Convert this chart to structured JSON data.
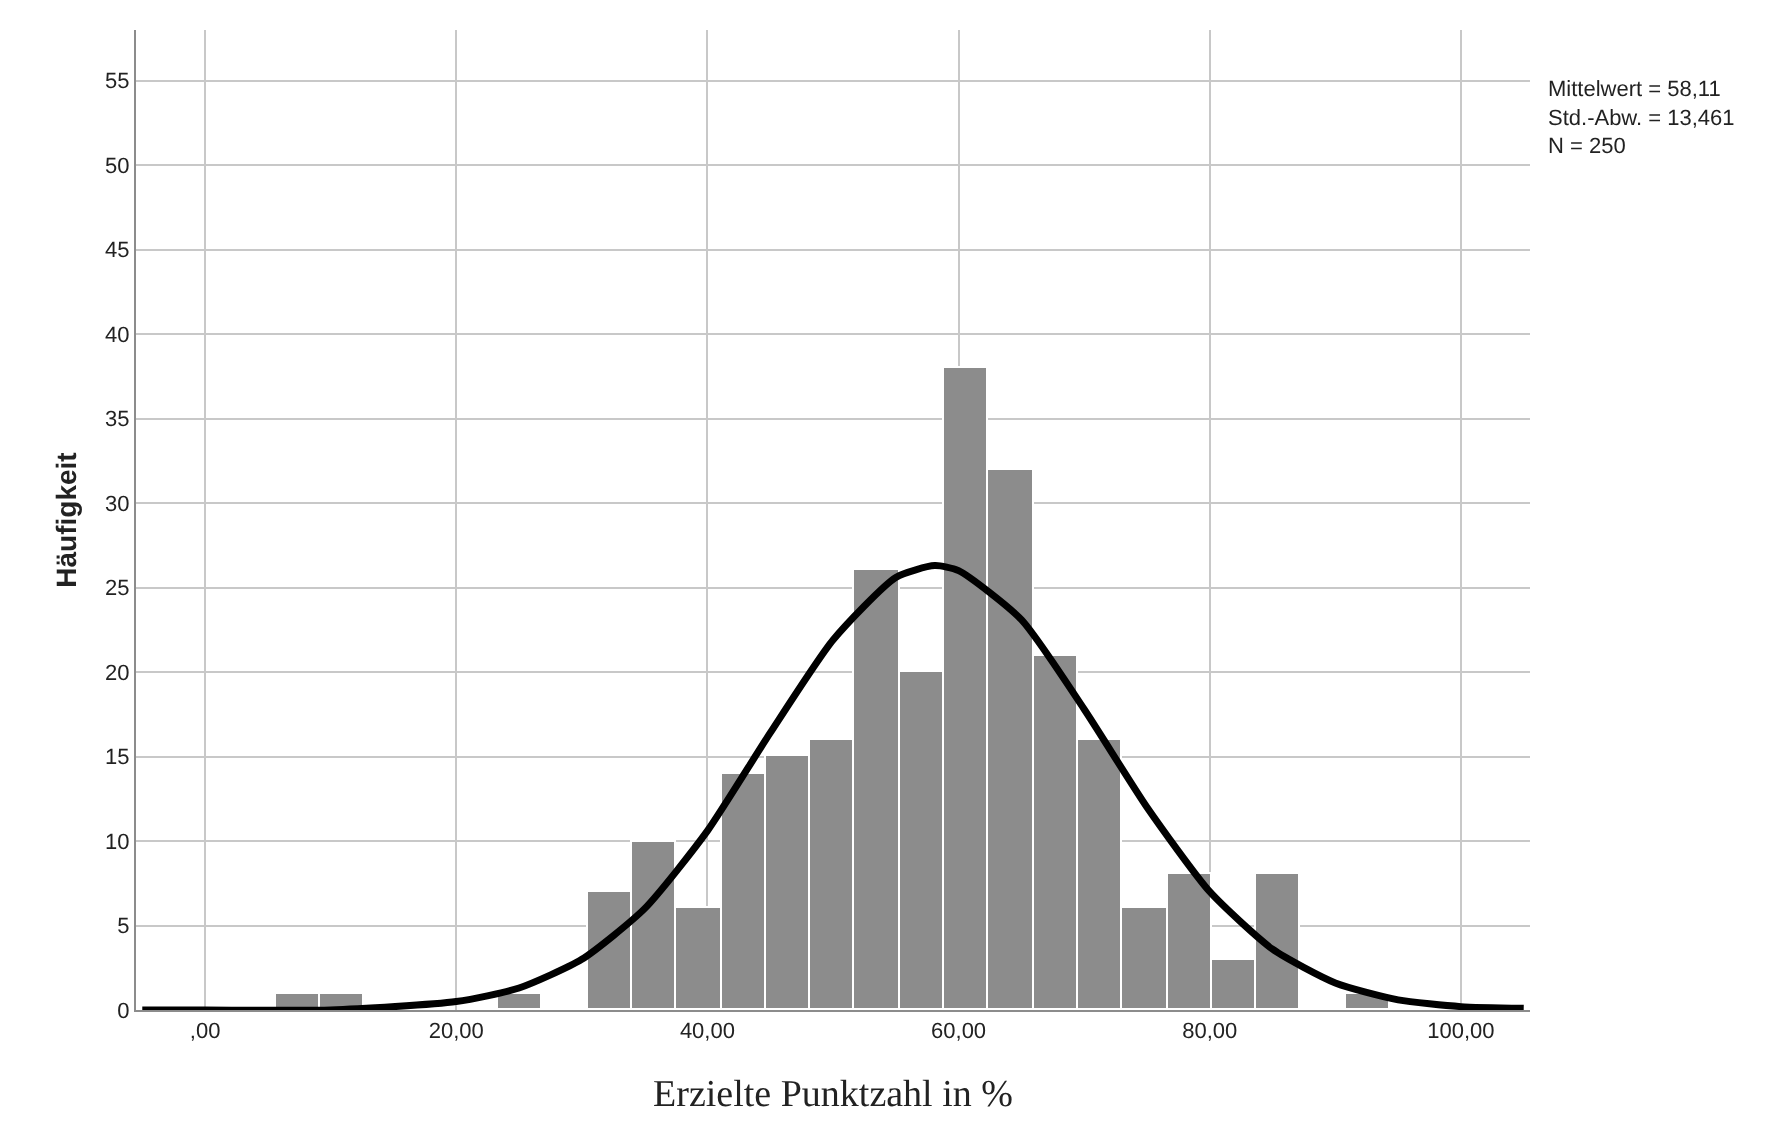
{
  "chart_data": {
    "type": "histogram",
    "xlabel": "Erzielte Punktzahl in %",
    "ylabel": "Häufigkeit",
    "annotations": [
      "Mittelwert = 58,11",
      "Std.-Abw. = 13,461",
      "N = 250"
    ],
    "bins": [
      5.6,
      9.15,
      12.7,
      16.25,
      19.8,
      23.35,
      26.9,
      30.45,
      34.0,
      37.55,
      41.1,
      44.65,
      48.2,
      51.75,
      55.3,
      58.85,
      62.4,
      65.95,
      69.5,
      73.05,
      76.6,
      80.15,
      83.7,
      87.25,
      90.8,
      94.35
    ],
    "values": [
      1,
      1,
      0,
      0,
      0,
      1,
      0,
      7,
      10,
      6,
      14,
      15,
      16,
      26,
      20,
      38,
      32,
      21,
      16,
      6,
      8,
      3,
      8,
      0,
      1
    ],
    "color": "#8c8c8c",
    "series": [
      {
        "type": "line",
        "color": "#000000",
        "x": [
          -5,
          0,
          10,
          20,
          25,
          30,
          35,
          40,
          45,
          50,
          55,
          58.11,
          60,
          65,
          70,
          75,
          80,
          85,
          90,
          95,
          100,
          105
        ],
        "values": [
          0.0,
          0.0,
          0.0,
          0.5,
          1.3,
          3.0,
          6.0,
          10.6,
          16.4,
          21.9,
          25.6,
          26.3,
          26.0,
          23.1,
          17.8,
          12.0,
          7.0,
          3.6,
          1.6,
          0.6,
          0.2,
          0.1
        ]
      }
    ],
    "xlim": [
      -5.5,
      105.5
    ],
    "xticks": [
      {
        "value": 0,
        "label": ",00"
      },
      {
        "value": 20,
        "label": "20,00"
      },
      {
        "value": 40,
        "label": "40,00"
      },
      {
        "value": 60,
        "label": "60,00"
      },
      {
        "value": 80,
        "label": "80,00"
      },
      {
        "value": 100,
        "label": "100,00"
      }
    ],
    "ylim": [
      0,
      58
    ],
    "yticks": [
      0,
      5,
      10,
      15,
      20,
      25,
      30,
      35,
      40,
      45,
      50,
      55
    ],
    "grid": true,
    "line_style": "solid",
    "marker": "none"
  }
}
